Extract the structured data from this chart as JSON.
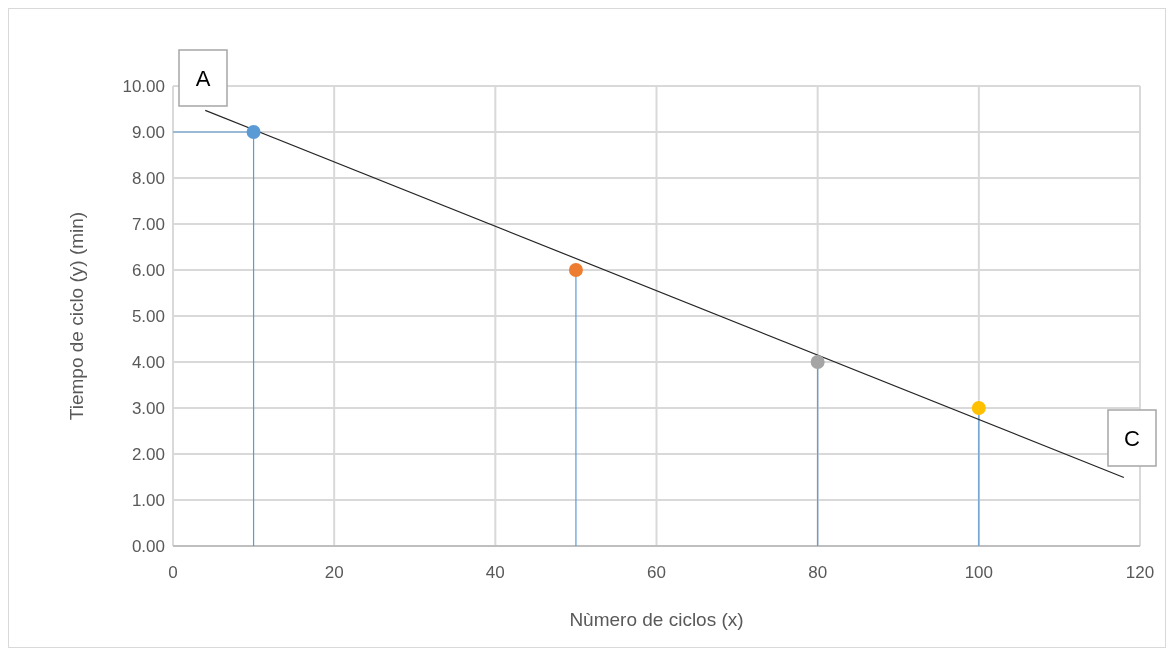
{
  "chart_data": {
    "type": "scatter",
    "xlabel": "Nùmero de ciclos (x)",
    "ylabel": "Tiempo de ciclo (y) (min)",
    "xlim": [
      0,
      120
    ],
    "xticks": [
      0,
      20,
      40,
      60,
      80,
      100,
      120
    ],
    "ylim": [
      0,
      10
    ],
    "yticks": [
      {
        "value": 0,
        "label": "0.00"
      },
      {
        "value": 1,
        "label": "1.00"
      },
      {
        "value": 2,
        "label": "2.00"
      },
      {
        "value": 3,
        "label": "3.00"
      },
      {
        "value": 4,
        "label": "4.00"
      },
      {
        "value": 5,
        "label": "5.00"
      },
      {
        "value": 6,
        "label": "6.00"
      },
      {
        "value": 7,
        "label": "7.00"
      },
      {
        "value": 8,
        "label": "8.00"
      },
      {
        "value": 9,
        "label": "9.00"
      },
      {
        "value": 10,
        "label": "10.00"
      }
    ],
    "grid": true,
    "marker": "circle",
    "annotations": [
      "A",
      "C"
    ],
    "series": [
      {
        "type": "line",
        "color": "#5b9bd5",
        "x": [
          0,
          10
        ],
        "values": [
          9,
          9
        ],
        "marker": "none"
      },
      {
        "type": "line",
        "color": "#5b9bd5",
        "x": [
          10,
          10
        ],
        "values": [
          9,
          0
        ],
        "marker": "none"
      },
      {
        "type": "line",
        "color": "#5b9bd5",
        "x": [
          50,
          50
        ],
        "values": [
          6,
          0
        ],
        "marker": "none"
      },
      {
        "type": "line",
        "color": "#5b9bd5",
        "x": [
          80,
          80
        ],
        "values": [
          4,
          0
        ],
        "marker": "none"
      },
      {
        "type": "line",
        "color": "#5b9bd5",
        "x": [
          100,
          100
        ],
        "values": [
          3,
          0
        ],
        "marker": "none"
      },
      {
        "type": "line",
        "color": "#262626",
        "x": [
          4,
          118
        ],
        "values": [
          9.47,
          1.49
        ],
        "marker": "none"
      },
      {
        "color": "#5b9bd5",
        "x": [
          10
        ],
        "values": [
          9
        ]
      },
      {
        "color": "#ed7d31",
        "x": [
          50
        ],
        "values": [
          6
        ]
      },
      {
        "color": "#a5a5a5",
        "x": [
          80
        ],
        "values": [
          4
        ]
      },
      {
        "color": "#ffc000",
        "x": [
          100
        ],
        "values": [
          3
        ]
      }
    ]
  }
}
